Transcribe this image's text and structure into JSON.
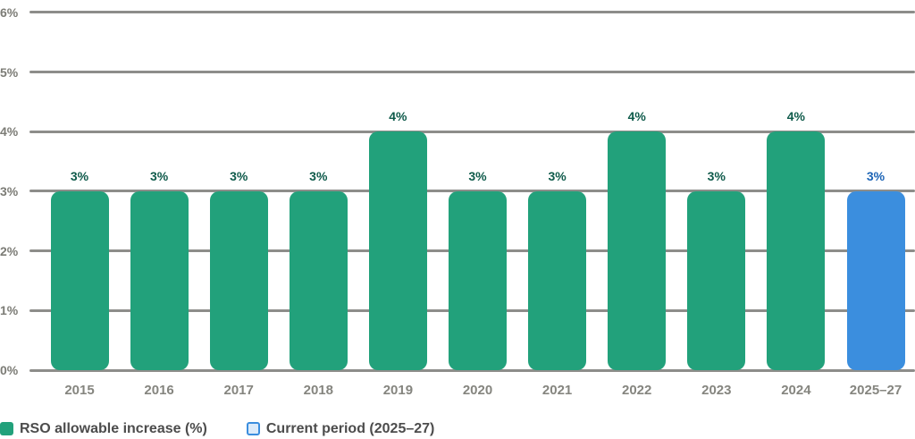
{
  "chart_data": {
    "type": "bar",
    "title": "",
    "xlabel": "",
    "ylabel": "",
    "categories": [
      "2015",
      "2016",
      "2017",
      "2018",
      "2019",
      "2020",
      "2021",
      "2022",
      "2023",
      "2024",
      "2025–27"
    ],
    "series": [
      {
        "name": "RSO allowable increase (%)",
        "values": [
          3,
          3,
          3,
          3,
          4,
          3,
          3,
          4,
          3,
          4,
          3
        ]
      }
    ],
    "bar_value_labels": [
      "3%",
      "3%",
      "3%",
      "3%",
      "4%",
      "3%",
      "3%",
      "4%",
      "3%",
      "4%",
      "3%"
    ],
    "highlight_index": 10,
    "ylim": [
      0,
      6
    ],
    "yticks": [
      "0%",
      "1%",
      "2%",
      "3%",
      "4%",
      "5%",
      "6%"
    ],
    "grid": true,
    "legend_position": "bottom-left",
    "legend": [
      {
        "label": "RSO allowable increase (%)",
        "swatch": "filled-square"
      },
      {
        "label": "Current period (2025–27)",
        "swatch": "outlined-square"
      }
    ],
    "colors": {
      "bar_default": "#22a17b",
      "bar_highlight": "#3b8ede",
      "value_label_default": "#0e5a4a",
      "value_label_highlight": "#1c64b6",
      "gridline": "#8d8d8a",
      "axis_tick_label": "#7c7c76",
      "category_label": "#85857f",
      "legend_text": "#4c4c4c",
      "legend_outline_fill": "#dcebfa"
    }
  }
}
